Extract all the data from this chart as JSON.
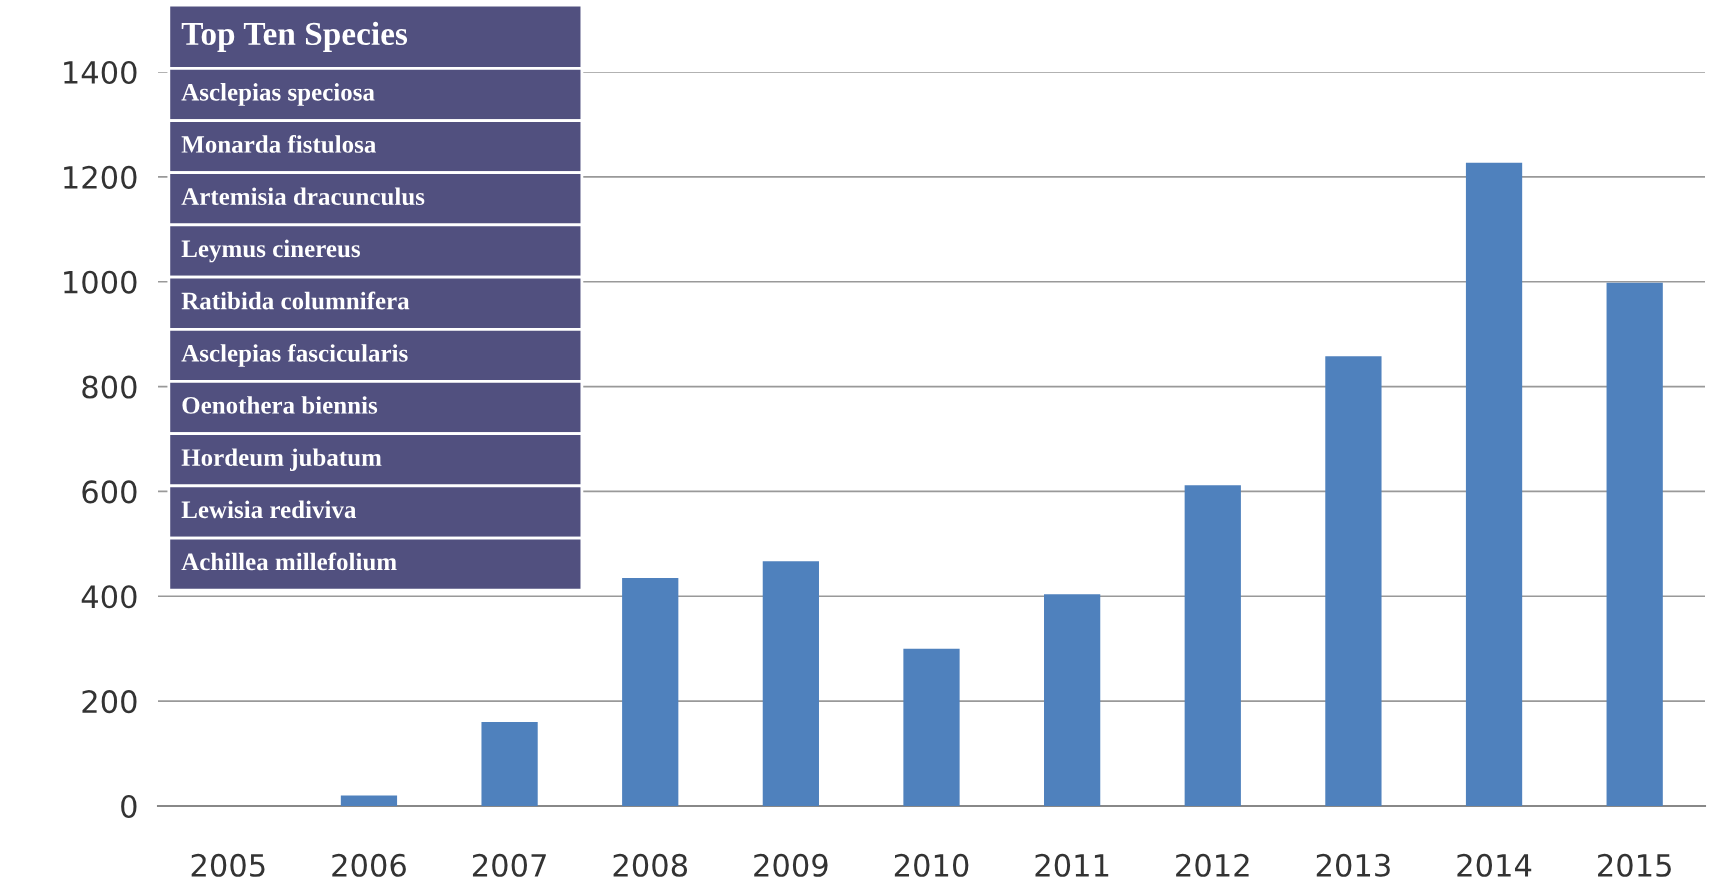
{
  "chart_data": {
    "type": "bar",
    "title": "Top Ten Species",
    "categories": [
      "2005",
      "2006",
      "2007",
      "2008",
      "2009",
      "2010",
      "2011",
      "2012",
      "2013",
      "2014",
      "2015"
    ],
    "values": [
      0,
      20,
      160,
      435,
      467,
      300,
      404,
      612,
      858,
      1227,
      998
    ],
    "color": "#4f81bd",
    "ylim": [
      0,
      1400
    ],
    "yticks": [
      0,
      200,
      400,
      600,
      800,
      1000,
      1200,
      1400
    ],
    "grid": "y",
    "legend": false,
    "annotations": [
      "Asclepias speciosa",
      "Monarda fistulosa",
      "Artemisia dracunculus",
      "Leymus cinereus",
      "Ratibida columnifera",
      "Asclepias fascicularis",
      "Oenothera biennis",
      "Hordeum jubatum",
      "Lewisia rediviva",
      "Achillea millefolium"
    ]
  }
}
